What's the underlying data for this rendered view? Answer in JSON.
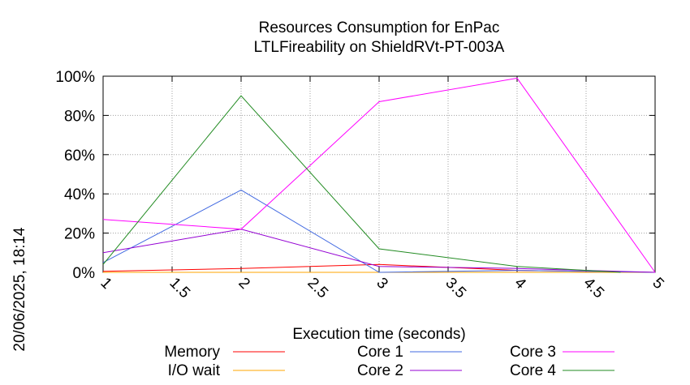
{
  "side_label": "20/06/2025, 18:14",
  "chart_data": {
    "type": "line",
    "title": "Resources Consumption for EnPac",
    "subtitle": "LTLFireability on ShieldRVt-PT-003A",
    "xlabel": "Execution time (seconds)",
    "ylabel": "",
    "xlim": [
      1,
      5
    ],
    "ylim": [
      0,
      100
    ],
    "x_ticks": [
      1,
      1.5,
      2,
      2.5,
      3,
      3.5,
      4,
      4.5,
      5
    ],
    "x_tick_labels": [
      "1",
      "1.5",
      "2",
      "2.5",
      "3",
      "3.5",
      "4",
      "4.5",
      "5"
    ],
    "y_ticks": [
      0,
      20,
      40,
      60,
      80,
      100
    ],
    "y_tick_labels": [
      "0%",
      "20%",
      "40%",
      "60%",
      "80%",
      "100%"
    ],
    "grid": true,
    "legend_position": "bottom",
    "series": [
      {
        "name": "Memory",
        "color": "#ff0000",
        "x": [
          1,
          2,
          3,
          4,
          5
        ],
        "y": [
          0.5,
          2,
          4,
          1,
          0
        ]
      },
      {
        "name": "I/O wait",
        "color": "#ffa500",
        "x": [
          1,
          2,
          3,
          4,
          5
        ],
        "y": [
          0,
          0,
          0,
          0,
          0
        ]
      },
      {
        "name": "Core 1",
        "color": "#4169e1",
        "x": [
          1,
          2,
          3,
          4,
          5
        ],
        "y": [
          5,
          42,
          0,
          1,
          0
        ]
      },
      {
        "name": "Core 2",
        "color": "#9400d3",
        "x": [
          1,
          2,
          3,
          4,
          5
        ],
        "y": [
          10,
          22,
          3,
          2,
          0
        ]
      },
      {
        "name": "Core 3",
        "color": "#ff00ff",
        "x": [
          1,
          2,
          3,
          4,
          5
        ],
        "y": [
          27,
          22,
          87,
          99,
          0
        ]
      },
      {
        "name": "Core 4",
        "color": "#228b22",
        "x": [
          1,
          2,
          3,
          4,
          4.75
        ],
        "y": [
          4,
          90,
          12,
          3,
          0
        ]
      }
    ]
  }
}
